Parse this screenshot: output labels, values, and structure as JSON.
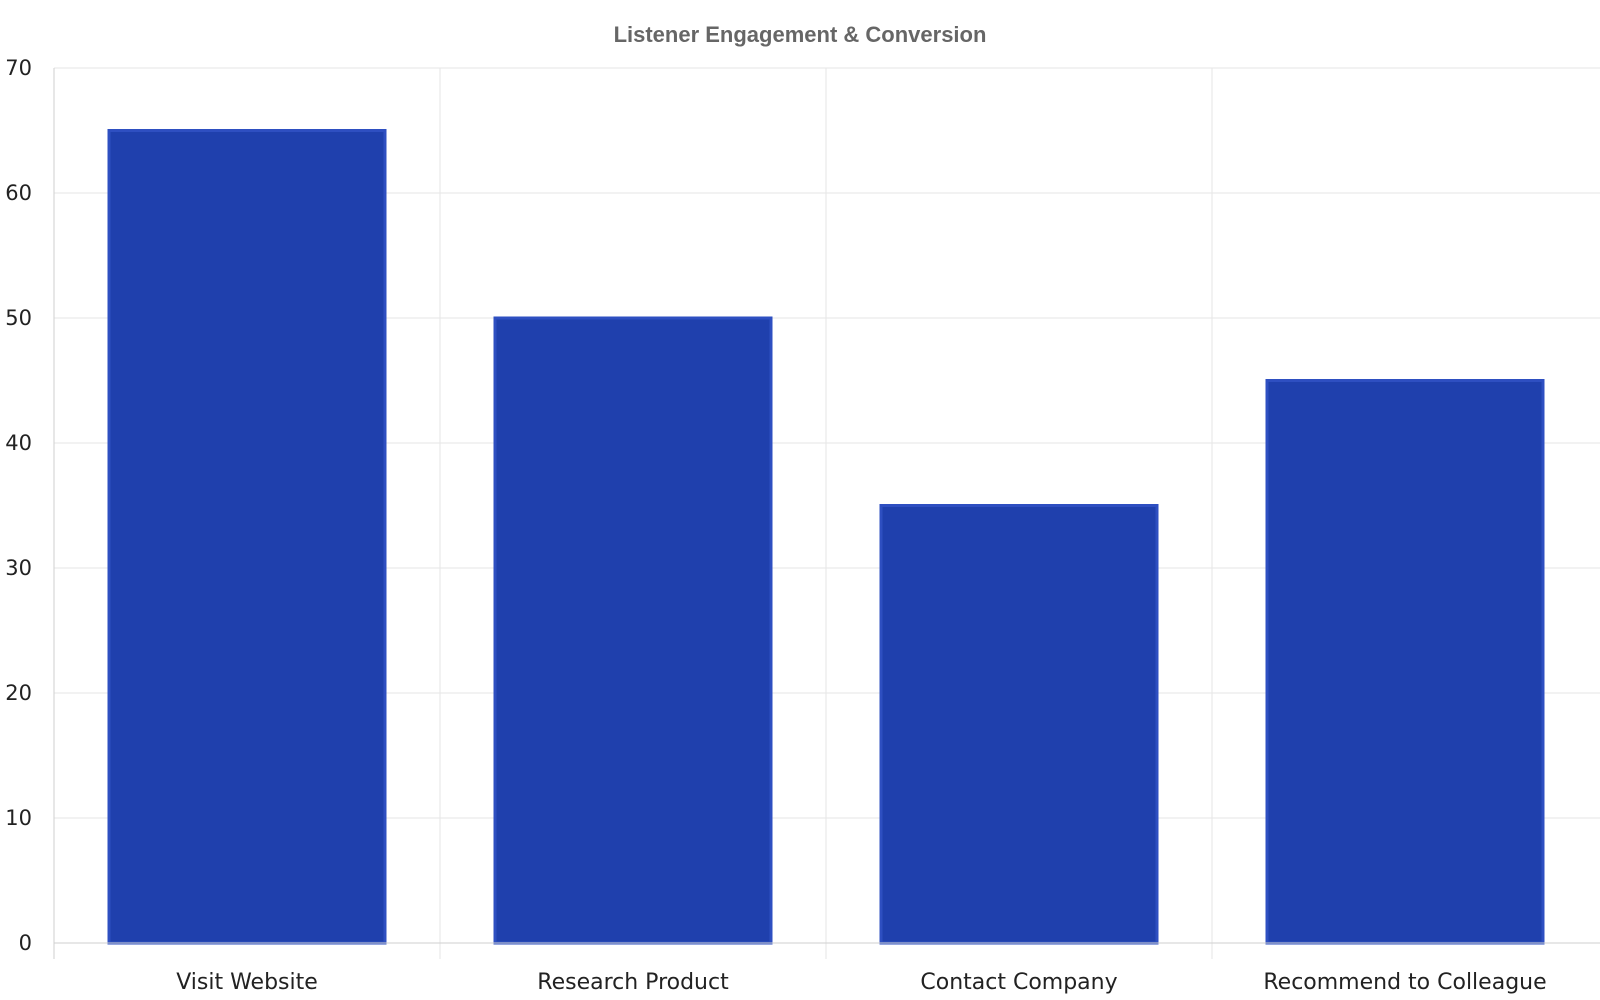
{
  "chart_data": {
    "type": "bar",
    "title": "Listener Engagement & Conversion",
    "xlabel": "",
    "ylabel": "",
    "categories": [
      "Visit Website",
      "Research Product",
      "Contact Company",
      "Recommend to Colleague"
    ],
    "values": [
      65,
      50,
      35,
      45
    ],
    "ylim": [
      0,
      70
    ],
    "yticks": [
      0,
      10,
      20,
      30,
      40,
      50,
      60,
      70
    ],
    "grid": true,
    "legend": "none",
    "colors": {
      "bar_fill": "#1f40ad",
      "bar_edge": "#2e4fc1"
    }
  }
}
